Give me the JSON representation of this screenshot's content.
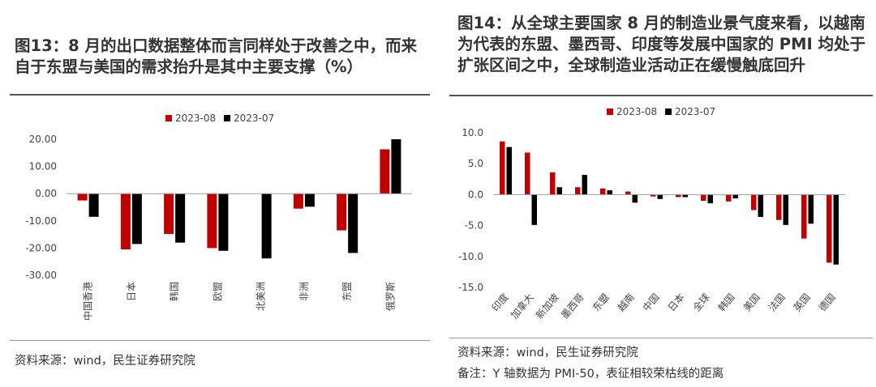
{
  "left": {
    "title": "图13：8 月的出口数据整体而言同样处于改善之中，而来自于东盟与美国的需求抬升是其中主要支撑（%）",
    "source": "资料来源：wind，民生证券研究院"
  },
  "right": {
    "title": "图14：从全球主要国家 8 月的制造业景气度来看，以越南为代表的东盟、墨西哥、印度等发展中国家的 PMI 均处于扩张区间之中，全球制造业活动正在缓慢触底回升",
    "source": "资料来源：wind，民生证券研究院",
    "note": "备注：Y 轴数据为 PMI-50，表征相较荣枯线的距离"
  },
  "chart_data": [
    {
      "type": "bar",
      "categories": [
        "中国香港",
        "日本",
        "韩国",
        "欧盟",
        "北美洲",
        "非洲",
        "东盟",
        "俄罗斯"
      ],
      "series": [
        {
          "name": "2023-08",
          "color": "#c00000",
          "values": [
            -2.5,
            -20.5,
            -14.8,
            -20.0,
            null,
            -5.5,
            -13.5,
            16.3
          ]
        },
        {
          "name": "2023-07",
          "color": "#000000",
          "values": [
            -8.5,
            -18.5,
            -18.0,
            -21.0,
            -23.8,
            -4.8,
            -21.8,
            20.0
          ]
        }
      ],
      "ylim": [
        -30,
        20
      ],
      "yticks": [
        "20.00",
        "10.00",
        "0.00",
        "-10.00",
        "-20.00",
        "-30.00"
      ],
      "legend": "top-center"
    },
    {
      "type": "bar",
      "categories": [
        "印度",
        "加拿大",
        "新加坡",
        "墨西哥",
        "东盟",
        "越南",
        "中国",
        "日本",
        "全球",
        "韩国",
        "美国",
        "法国",
        "英国",
        "德国"
      ],
      "series": [
        {
          "name": "2023-08",
          "color": "#c00000",
          "values": [
            8.6,
            6.8,
            3.6,
            1.2,
            1.0,
            0.5,
            -0.3,
            -0.4,
            -1.0,
            -1.1,
            -2.5,
            -4.1,
            -7.1,
            -11.0
          ]
        },
        {
          "name": "2023-07",
          "color": "#000000",
          "values": [
            7.7,
            -4.9,
            1.2,
            3.2,
            0.7,
            -1.3,
            -0.7,
            -0.4,
            -1.4,
            -0.6,
            -3.6,
            -4.9,
            -4.7,
            -11.3
          ]
        }
      ],
      "ylim": [
        -15,
        10
      ],
      "yticks": [
        "10.0",
        "5.0",
        "0.0",
        "-5.0",
        "-10.0",
        "-15.0"
      ],
      "legend": "top-center"
    }
  ]
}
